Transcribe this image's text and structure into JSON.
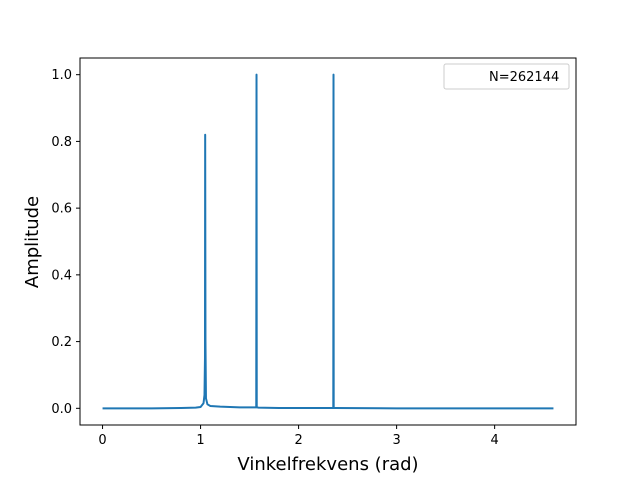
{
  "chart_data": {
    "type": "line",
    "title": "",
    "xlabel": "Vinkelfrekvens (rad)",
    "ylabel": "Amplitude",
    "xlim": [
      -0.23,
      4.83
    ],
    "ylim": [
      -0.05,
      1.05
    ],
    "xticks": [
      0,
      1,
      2,
      3,
      4
    ],
    "xtick_labels": [
      "0",
      "1",
      "2",
      "3",
      "4"
    ],
    "yticks": [
      0.0,
      0.2,
      0.4,
      0.6,
      0.8,
      1.0
    ],
    "ytick_labels": [
      "0.0",
      "0.2",
      "0.4",
      "0.6",
      "0.8",
      "1.0"
    ],
    "grid": false,
    "legend_position": "top-right",
    "series": [
      {
        "name": "N=262144",
        "color": "#1f77b4",
        "x": [
          0.0,
          0.5,
          0.8,
          0.95,
          1.0,
          1.03,
          1.04,
          1.045,
          1.047,
          1.05,
          1.055,
          1.07,
          1.1,
          1.2,
          1.4,
          1.55,
          1.568,
          1.5708,
          1.573,
          1.59,
          1.8,
          2.2,
          2.35,
          2.354,
          2.3562,
          2.358,
          2.37,
          3.0,
          4.0,
          4.6
        ],
        "y": [
          0.0,
          0.0,
          0.001,
          0.002,
          0.004,
          0.015,
          0.04,
          0.15,
          0.82,
          0.2,
          0.03,
          0.012,
          0.007,
          0.005,
          0.003,
          0.003,
          0.003,
          1.0,
          0.003,
          0.002,
          0.001,
          0.001,
          0.001,
          0.001,
          1.0,
          0.001,
          0.001,
          0.0,
          0.0,
          0.0
        ]
      }
    ]
  }
}
